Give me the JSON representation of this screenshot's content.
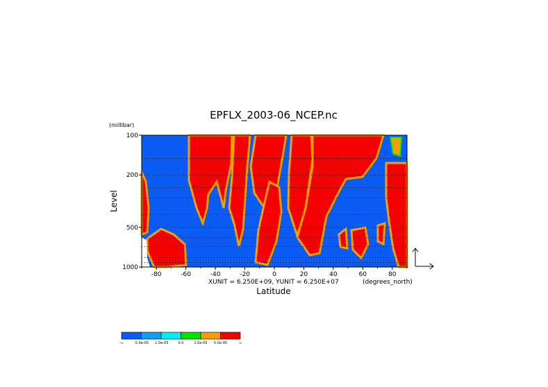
{
  "chart_data": {
    "type": "heatmap",
    "title": "EPFLX_2003-06_NCEP.nc",
    "xlabel": "Latitude",
    "ylabel": "Level",
    "y_units": "(millibar)",
    "x_units": "(degrees_north)",
    "unit_note": "XUNIT = 6.250E+09, YUNIT = 6.250E+07",
    "xlim": [
      -90,
      90
    ],
    "ylim": [
      1000,
      100
    ],
    "y_scale": "log",
    "x_ticks": [
      -80,
      -60,
      -40,
      -20,
      0,
      20,
      40,
      60,
      80
    ],
    "x_tick_labels": [
      "-80",
      "-60",
      "-40",
      "-20",
      "0",
      "20",
      "40",
      "60",
      "80"
    ],
    "y_ticks": [
      100,
      200,
      500,
      1000
    ],
    "y_tick_labels": [
      "100",
      "200",
      "500",
      "1000"
    ],
    "grid_levels": [
      100,
      150,
      200,
      250,
      300,
      400,
      500,
      600,
      700,
      850,
      925,
      1000
    ],
    "grid": "dotted horizontal at pressure levels",
    "legend": {
      "placement": "bottom-left",
      "colors": [
        "#0a5cf5",
        "#0ea0f0",
        "#00f0f0",
        "#00e400",
        "#f5a000",
        "#f50000"
      ],
      "labels": [
        "-∞",
        "-5.0e-05",
        "-1.0e-05",
        "0.0",
        "1.0e-05",
        "5.0e-05",
        "∞"
      ]
    },
    "vector_key": "arrow-axes (bottom-right)"
  }
}
